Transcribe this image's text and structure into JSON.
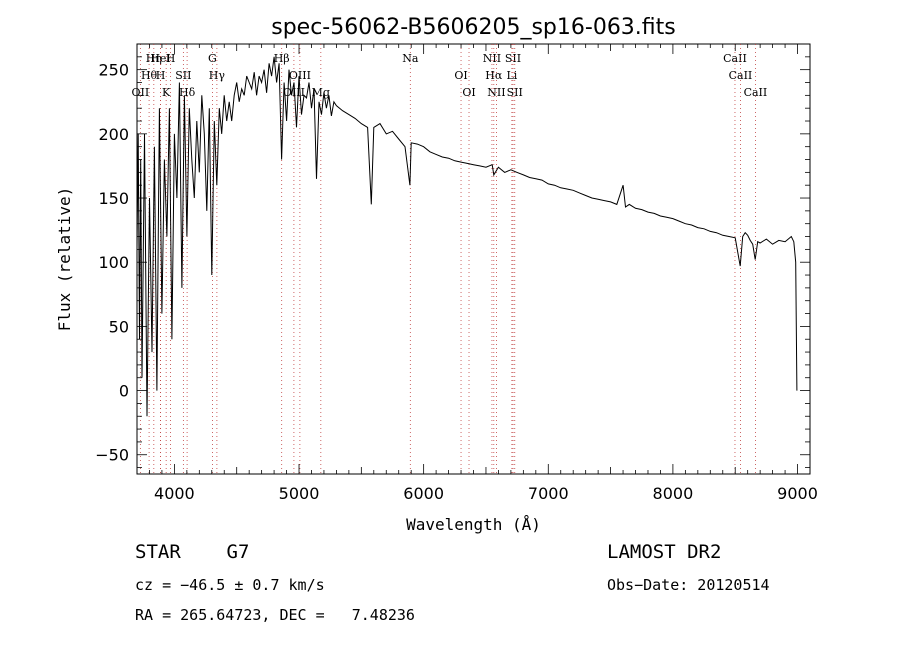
{
  "chart_data": {
    "type": "line",
    "title": "spec-56062-B5606205_sp16-063.fits",
    "xlabel": "Wavelength (Å)",
    "ylabel": "Flux (relative)",
    "xlim": [
      3700,
      9100
    ],
    "ylim": [
      -65,
      270
    ],
    "xticks": [
      4000,
      5000,
      6000,
      7000,
      8000,
      9000
    ],
    "yticks": [
      -50,
      0,
      50,
      100,
      150,
      200,
      250
    ],
    "grid": false,
    "series": [
      {
        "x": [
          3700,
          3710,
          3720,
          3730,
          3740,
          3760,
          3780,
          3800,
          3820,
          3840,
          3860,
          3880,
          3900,
          3920,
          3940,
          3960,
          3980,
          4000,
          4020,
          4040,
          4060,
          4080,
          4100,
          4120,
          4140,
          4160,
          4180,
          4200,
          4220,
          4240,
          4260,
          4280,
          4300,
          4320,
          4340,
          4360,
          4380,
          4400,
          4420,
          4440,
          4460,
          4480,
          4500,
          4520,
          4540,
          4560,
          4580,
          4600,
          4620,
          4640,
          4660,
          4680,
          4700,
          4720,
          4740,
          4760,
          4780,
          4800,
          4820,
          4840,
          4860,
          4880,
          4900,
          4920,
          4940,
          4960,
          4980,
          5000,
          5020,
          5040,
          5060,
          5080,
          5100,
          5120,
          5140,
          5160,
          5180,
          5200,
          5220,
          5240,
          5260,
          5280,
          5300,
          5350,
          5400,
          5450,
          5500,
          5550,
          5580,
          5600,
          5650,
          5700,
          5750,
          5800,
          5850,
          5890,
          5900,
          5950,
          6000,
          6050,
          6100,
          6150,
          6200,
          6250,
          6300,
          6350,
          6400,
          6450,
          6500,
          6550,
          6563,
          6600,
          6650,
          6700,
          6750,
          6800,
          6850,
          6900,
          6950,
          7000,
          7050,
          7100,
          7150,
          7200,
          7250,
          7300,
          7350,
          7400,
          7450,
          7500,
          7550,
          7600,
          7620,
          7650,
          7700,
          7750,
          7800,
          7850,
          7900,
          7950,
          8000,
          8050,
          8100,
          8150,
          8200,
          8250,
          8300,
          8350,
          8400,
          8450,
          8500,
          8540,
          8560,
          8580,
          8600,
          8620,
          8640,
          8660,
          8680,
          8700,
          8750,
          8800,
          8850,
          8900,
          8950,
          8970,
          8985,
          8995
        ],
        "y": [
          110,
          200,
          40,
          180,
          10,
          200,
          -20,
          150,
          30,
          190,
          0,
          220,
          60,
          180,
          120,
          220,
          40,
          200,
          150,
          240,
          80,
          230,
          120,
          220,
          180,
          150,
          210,
          170,
          230,
          200,
          140,
          220,
          90,
          210,
          160,
          220,
          200,
          230,
          210,
          225,
          210,
          230,
          240,
          225,
          235,
          230,
          245,
          240,
          235,
          248,
          230,
          245,
          240,
          250,
          232,
          255,
          245,
          260,
          240,
          255,
          180,
          240,
          210,
          250,
          230,
          240,
          205,
          245,
          215,
          230,
          228,
          240,
          220,
          235,
          165,
          225,
          215,
          232,
          220,
          230,
          214,
          225,
          222,
          218,
          215,
          212,
          208,
          205,
          145,
          205,
          208,
          200,
          202,
          196,
          190,
          160,
          193,
          192,
          190,
          186,
          184,
          182,
          181,
          179,
          178,
          177,
          176,
          175,
          174,
          176,
          168,
          174,
          170,
          172,
          170,
          168,
          166,
          165,
          164,
          161,
          160,
          158,
          157,
          156,
          154,
          152,
          150,
          149,
          148,
          147,
          145,
          160,
          143,
          145,
          142,
          141,
          139,
          138,
          136,
          135,
          134,
          132,
          130,
          129,
          127,
          126,
          124,
          123,
          121,
          120,
          119,
          97,
          120,
          123,
          121,
          117,
          114,
          102,
          116,
          115,
          118,
          114,
          117,
          116,
          120,
          116,
          100,
          0
        ]
      }
    ],
    "lines": [
      {
        "label": "Hη",
        "x": 3835
      },
      {
        "label": "H",
        "x": 3889
      },
      {
        "label": "K",
        "x": 3934
      },
      {
        "label": "H",
        "x": 3969
      },
      {
        "label": "Hθ",
        "x": 3797
      },
      {
        "label": "OII",
        "x": 3727
      },
      {
        "label": "HeI",
        "x": 3889
      },
      {
        "label": "SII",
        "x": 4072
      },
      {
        "label": "Hδ",
        "x": 4102
      },
      {
        "label": "G",
        "x": 4305
      },
      {
        "label": "Hγ",
        "x": 4341
      },
      {
        "label": "OIII",
        "x": 4959
      },
      {
        "label": "Hβ",
        "x": 4861
      },
      {
        "label": "OIII",
        "x": 5007
      },
      {
        "label": "Mg",
        "x": 5175
      },
      {
        "label": "Na",
        "x": 5893
      },
      {
        "label": "OI",
        "x": 6300
      },
      {
        "label": "OI",
        "x": 6364
      },
      {
        "label": "NII",
        "x": 6548
      },
      {
        "label": "Li",
        "x": 6708
      },
      {
        "label": "NII",
        "x": 6584
      },
      {
        "label": "SII",
        "x": 6717
      },
      {
        "label": "Hα",
        "x": 6563
      },
      {
        "label": "SII",
        "x": 6731
      },
      {
        "label": "CaII",
        "x": 8498
      },
      {
        "label": "CaII",
        "x": 8542
      },
      {
        "label": "CaII",
        "x": 8662
      }
    ]
  },
  "info": {
    "class": "STAR",
    "subclass": "G7",
    "survey": "LAMOST DR2",
    "cz": "cz = −46.5 ± 0.7 km/s",
    "obsdate": "Obs−Date: 20120514",
    "radec": "RA = 265.64723, DEC =   7.48236"
  }
}
